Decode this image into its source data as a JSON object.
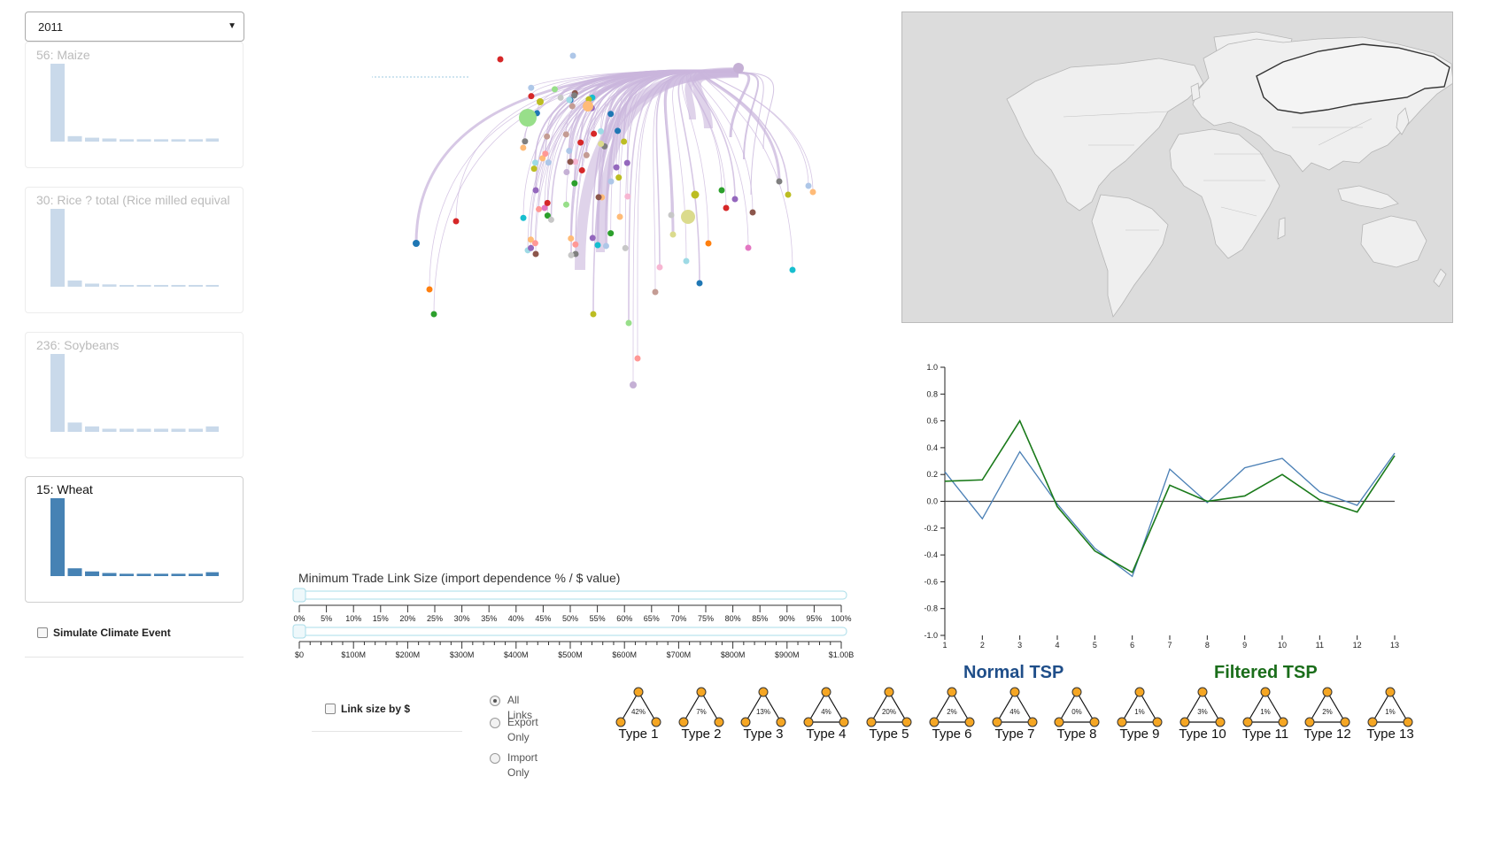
{
  "year_select": {
    "value": "2011"
  },
  "crops": [
    {
      "title": "56: Maize",
      "values": [
        1.0,
        0.07,
        0.05,
        0.04,
        0.03,
        0.03,
        0.03,
        0.03,
        0.03,
        0.04
      ],
      "active": false
    },
    {
      "title": "30: Rice ? total (Rice milled equival",
      "values": [
        1.0,
        0.08,
        0.04,
        0.03,
        0.02,
        0.02,
        0.02,
        0.02,
        0.02,
        0.02
      ],
      "active": false
    },
    {
      "title": "236: Soybeans",
      "values": [
        1.0,
        0.12,
        0.07,
        0.04,
        0.04,
        0.04,
        0.04,
        0.04,
        0.04,
        0.07
      ],
      "active": false
    },
    {
      "title": "15: Wheat",
      "values": [
        1.0,
        0.1,
        0.06,
        0.04,
        0.03,
        0.03,
        0.03,
        0.03,
        0.03,
        0.05
      ],
      "active": true
    }
  ],
  "climate": {
    "label": "Simulate Climate Event"
  },
  "slider": {
    "title": "Minimum Trade Link Size (import dependence % / $ value)",
    "pct_ticks": [
      "0%",
      "5%",
      "10%",
      "15%",
      "20%",
      "25%",
      "30%",
      "35%",
      "40%",
      "45%",
      "50%",
      "55%",
      "60%",
      "65%",
      "70%",
      "75%",
      "80%",
      "85%",
      "90%",
      "95%",
      "100%"
    ],
    "usd_ticks": [
      "$0",
      "$100M",
      "$200M",
      "$300M",
      "$400M",
      "$500M",
      "$600M",
      "$700M",
      "$800M",
      "$900M",
      "$1.00B"
    ],
    "pct_value": 0,
    "usd_value": 0
  },
  "link_size": {
    "label": "Link size by $"
  },
  "link_filter": {
    "options": [
      "All Links",
      "Export Only",
      "Import Only"
    ],
    "selected": 0
  },
  "tsp": {
    "normal_label": "Normal TSP",
    "filtered_label": "Filtered TSP"
  },
  "motifs": [
    {
      "label": "Type 1",
      "pct": "42%"
    },
    {
      "label": "Type 2",
      "pct": "7%"
    },
    {
      "label": "Type 3",
      "pct": "13%"
    },
    {
      "label": "Type 4",
      "pct": "4%"
    },
    {
      "label": "Type 5",
      "pct": "20%"
    },
    {
      "label": "Type 6",
      "pct": "2%"
    },
    {
      "label": "Type 7",
      "pct": "4%"
    },
    {
      "label": "Type 8",
      "pct": "0%"
    },
    {
      "label": "Type 9",
      "pct": "1%"
    },
    {
      "label": "Type 10",
      "pct": "3%"
    },
    {
      "label": "Type 11",
      "pct": "1%"
    },
    {
      "label": "Type 12",
      "pct": "2%"
    },
    {
      "label": "Type 13",
      "pct": "1%"
    }
  ],
  "chart_data": {
    "type": "line",
    "x": [
      1,
      2,
      3,
      4,
      5,
      6,
      7,
      8,
      9,
      10,
      11,
      12,
      13
    ],
    "ylim": [
      -1.0,
      1.0
    ],
    "yticks": [
      "1.0",
      "0.8",
      "0.6",
      "0.4",
      "0.2",
      "0.0",
      "-0.2",
      "-0.4",
      "-0.6",
      "-0.8",
      "-1.0"
    ],
    "xticks": [
      "1",
      "2",
      "3",
      "4",
      "5",
      "6",
      "7",
      "8",
      "9",
      "10",
      "11",
      "12",
      "13"
    ],
    "series": [
      {
        "name": "Normal TSP",
        "color": "#4a7fb5",
        "values": [
          0.22,
          -0.13,
          0.37,
          -0.02,
          -0.35,
          -0.56,
          0.24,
          -0.01,
          0.25,
          0.32,
          0.07,
          -0.03,
          0.36
        ]
      },
      {
        "name": "Filtered TSP",
        "color": "#1a7a1a",
        "values": [
          0.15,
          0.16,
          0.6,
          -0.04,
          -0.37,
          -0.53,
          0.12,
          0.0,
          0.04,
          0.2,
          0.01,
          -0.08,
          0.34
        ]
      }
    ],
    "zero_line": true
  },
  "colors": {
    "bar_inactive": "#c9d9ea",
    "bar_active": "#4682b4",
    "link": "#c9b6dc",
    "motif_node": "#f5a623"
  }
}
